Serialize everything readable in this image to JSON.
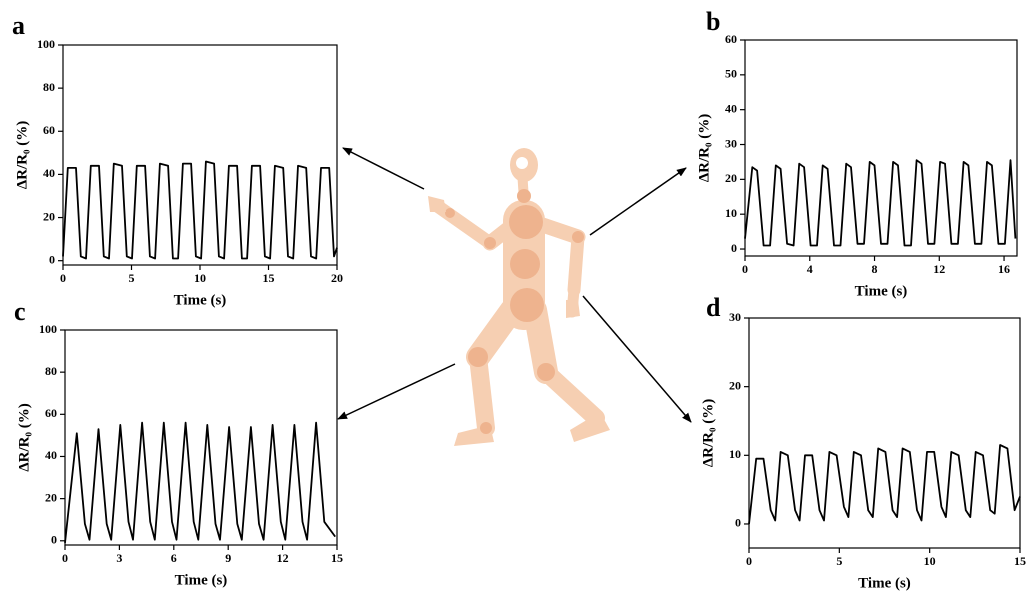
{
  "chart_data": [
    {
      "type": "line",
      "label": "a",
      "xlabel": "Time (s)",
      "ylabel": "ΔR/R₀ (%)",
      "color": "#000000",
      "xlim": [
        0,
        20
      ],
      "xticks": [
        0,
        5,
        10,
        15,
        20
      ],
      "ylim": [
        -2,
        100
      ],
      "yticks": [
        0,
        20,
        40,
        60,
        80,
        100
      ],
      "x": [
        0,
        0.35,
        0.95,
        1.3,
        1.68,
        2.03,
        2.63,
        2.98,
        3.36,
        3.71,
        4.31,
        4.66,
        5.04,
        5.39,
        5.99,
        6.34,
        6.72,
        7.07,
        7.67,
        8.02,
        8.4,
        8.75,
        9.35,
        9.7,
        10.08,
        10.43,
        11.03,
        11.38,
        11.76,
        12.11,
        12.71,
        13.06,
        13.44,
        13.79,
        14.39,
        14.74,
        15.12,
        15.47,
        16.07,
        16.42,
        16.8,
        17.15,
        17.75,
        18.1,
        18.48,
        18.83,
        19.43,
        19.78,
        20
      ],
      "values": [
        2,
        43,
        43,
        2,
        1,
        44,
        44,
        2,
        1,
        45,
        44,
        2,
        1,
        44,
        44,
        2,
        1,
        45,
        44,
        1,
        1,
        45,
        45,
        2,
        1,
        46,
        45,
        2,
        1,
        44,
        44,
        1,
        1,
        44,
        44,
        2,
        1,
        44,
        43,
        2,
        1,
        44,
        43,
        2,
        1,
        43,
        43,
        2,
        6
      ]
    },
    {
      "type": "line",
      "label": "b",
      "xlabel": "Time (s)",
      "ylabel": "ΔR/R₀ (%)",
      "color": "#000000",
      "xlim": [
        0,
        16.8
      ],
      "xticks": [
        0,
        4,
        8,
        12,
        16
      ],
      "ylim": [
        -2,
        60
      ],
      "yticks": [
        0,
        10,
        20,
        30,
        40,
        50,
        60
      ],
      "x": [
        0,
        0.45,
        0.75,
        1.15,
        1.55,
        1.9,
        2.2,
        2.6,
        3.0,
        3.35,
        3.65,
        4.05,
        4.45,
        4.8,
        5.1,
        5.5,
        5.9,
        6.25,
        6.55,
        6.95,
        7.35,
        7.7,
        8.0,
        8.4,
        8.8,
        9.15,
        9.45,
        9.85,
        10.25,
        10.6,
        10.9,
        11.3,
        11.7,
        12.05,
        12.35,
        12.75,
        13.15,
        13.5,
        13.8,
        14.2,
        14.6,
        14.95,
        15.25,
        15.65,
        16.05,
        16.4,
        16.7
      ],
      "values": [
        3,
        23.5,
        22.5,
        1,
        1,
        24,
        23,
        1.5,
        1,
        24.5,
        23.5,
        1,
        1,
        24,
        23,
        1,
        1,
        24.5,
        23.5,
        1.5,
        1.5,
        25,
        24,
        1.5,
        1.5,
        25,
        24,
        1,
        1,
        25.5,
        24.5,
        1.5,
        1.5,
        25,
        24.5,
        1.5,
        1.5,
        25,
        24,
        1.5,
        1.5,
        25,
        24,
        1.5,
        1.5,
        25.5,
        3
      ]
    },
    {
      "type": "line",
      "label": "c",
      "xlabel": "Time (s)",
      "ylabel": "ΔR/R₀ (%)",
      "color": "#000000",
      "xlim": [
        0,
        15
      ],
      "xticks": [
        0,
        3,
        6,
        9,
        12,
        15
      ],
      "ylim": [
        -2,
        100
      ],
      "yticks": [
        0,
        20,
        40,
        60,
        80,
        100
      ],
      "x": [
        0,
        0.65,
        1.1,
        1.35,
        1.85,
        2.3,
        2.55,
        3.05,
        3.5,
        3.75,
        4.25,
        4.7,
        4.95,
        5.45,
        5.9,
        6.15,
        6.65,
        7.1,
        7.35,
        7.85,
        8.3,
        8.55,
        9.05,
        9.5,
        9.75,
        10.25,
        10.7,
        10.95,
        11.45,
        11.9,
        12.15,
        12.65,
        13.1,
        13.35,
        13.85,
        14.3,
        14.9
      ],
      "values": [
        -1,
        51,
        8,
        0.5,
        53,
        8,
        0.5,
        55,
        9,
        0.5,
        56,
        9,
        0.5,
        56,
        9,
        0.5,
        56,
        9,
        0.5,
        55,
        8,
        0.5,
        54,
        8,
        0.5,
        54,
        8,
        0.5,
        55,
        9,
        0.5,
        55,
        9,
        0.5,
        56,
        9,
        2
      ]
    },
    {
      "type": "line",
      "label": "d",
      "xlabel": "Time (s)",
      "ylabel": "ΔR/R₀ (%)",
      "color": "#000000",
      "xlim": [
        0,
        15
      ],
      "xticks": [
        0,
        5,
        10,
        15
      ],
      "ylim": [
        -3.5,
        30
      ],
      "yticks": [
        0,
        10,
        20,
        30
      ],
      "x": [
        0,
        0.4,
        0.8,
        1.2,
        1.45,
        1.75,
        2.15,
        2.55,
        2.8,
        3.1,
        3.5,
        3.9,
        4.15,
        4.45,
        4.85,
        5.25,
        5.5,
        5.8,
        6.2,
        6.6,
        6.85,
        7.15,
        7.55,
        7.95,
        8.2,
        8.5,
        8.9,
        9.3,
        9.55,
        9.85,
        10.25,
        10.65,
        10.9,
        11.2,
        11.6,
        12.0,
        12.25,
        12.55,
        12.95,
        13.35,
        13.6,
        13.9,
        14.3,
        14.7,
        15
      ],
      "values": [
        0,
        9.5,
        9.5,
        2,
        0.5,
        10.5,
        10,
        2,
        0.5,
        10,
        10,
        2,
        0.5,
        10.5,
        10,
        2.5,
        1,
        10.5,
        10,
        2,
        1,
        11,
        10.5,
        2,
        1,
        11,
        10.5,
        2,
        0.5,
        10.5,
        10.5,
        2.5,
        1,
        10.5,
        10,
        2,
        1,
        10.5,
        10,
        2,
        1.5,
        11.5,
        11,
        2,
        4
      ]
    }
  ]
}
